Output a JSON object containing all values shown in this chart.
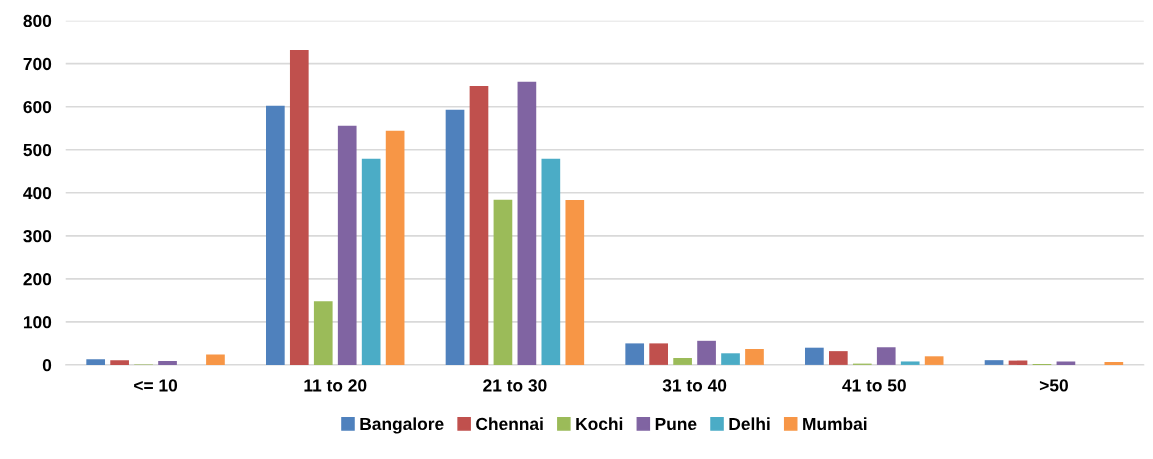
{
  "chart_data": {
    "type": "bar",
    "categories": [
      "<= 10",
      "11 to 20",
      "21 to 30",
      "31 to 40",
      "41 to 50",
      ">50"
    ],
    "series": [
      {
        "name": "Bangalore",
        "color": "#4f81bd",
        "values": [
          13,
          602,
          593,
          50,
          40,
          11
        ]
      },
      {
        "name": "Chennai",
        "color": "#c0504d",
        "values": [
          11,
          732,
          648,
          50,
          32,
          10
        ]
      },
      {
        "name": "Kochi",
        "color": "#9bbb59",
        "values": [
          1,
          148,
          384,
          16,
          3,
          2
        ]
      },
      {
        "name": "Pune",
        "color": "#8064a2",
        "values": [
          9,
          556,
          658,
          56,
          41,
          8
        ]
      },
      {
        "name": "Delhi",
        "color": "#4bacc6",
        "values": [
          0,
          479,
          479,
          27,
          8,
          0
        ]
      },
      {
        "name": "Mumbai",
        "color": "#f79646",
        "values": [
          24,
          544,
          383,
          37,
          20,
          7
        ]
      }
    ],
    "ylim": [
      0,
      800
    ],
    "yticks": [
      0,
      100,
      200,
      300,
      400,
      500,
      600,
      700,
      800
    ],
    "grid": "y",
    "legend": "bottom"
  }
}
